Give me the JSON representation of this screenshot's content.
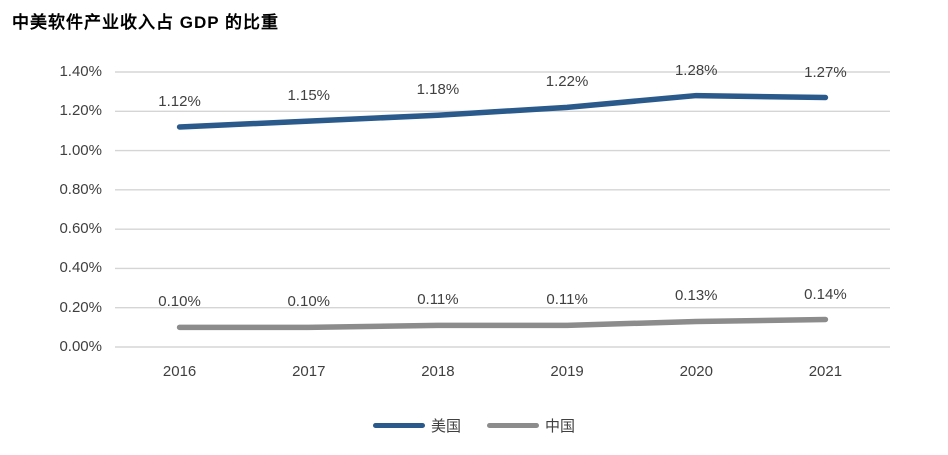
{
  "title": "中美软件产业收入占 GDP 的比重",
  "colors": {
    "us_line": "#2a5a8b",
    "china_line": "#8c8c8c",
    "gridline": "#d5d5d5",
    "tick_text": "#3f3f3f",
    "label_text": "#404040",
    "title_text": "#000000",
    "background": "#ffffff"
  },
  "chart_data": {
    "type": "line",
    "title": "中美软件产业收入占 GDP 的比重",
    "categories": [
      "2016",
      "2017",
      "2018",
      "2019",
      "2020",
      "2021"
    ],
    "series": [
      {
        "name": "美国",
        "color": "#2a5a8b",
        "values": [
          1.12,
          1.15,
          1.18,
          1.22,
          1.28,
          1.27
        ],
        "labels": [
          "1.12%",
          "1.15%",
          "1.18%",
          "1.22%",
          "1.28%",
          "1.27%"
        ]
      },
      {
        "name": "中国",
        "color": "#8c8c8c",
        "values": [
          0.1,
          0.1,
          0.11,
          0.11,
          0.13,
          0.14
        ],
        "labels": [
          "0.10%",
          "0.10%",
          "0.11%",
          "0.11%",
          "0.13%",
          "0.14%"
        ]
      }
    ],
    "y_axis": {
      "min": 0,
      "max": 1.4,
      "step": 0.2,
      "tick_labels": [
        "0.00%",
        "0.20%",
        "0.40%",
        "0.60%",
        "0.80%",
        "1.00%",
        "1.20%",
        "1.40%"
      ]
    },
    "xlabel": "",
    "ylabel": "",
    "grid": true,
    "legend_position": "bottom"
  }
}
